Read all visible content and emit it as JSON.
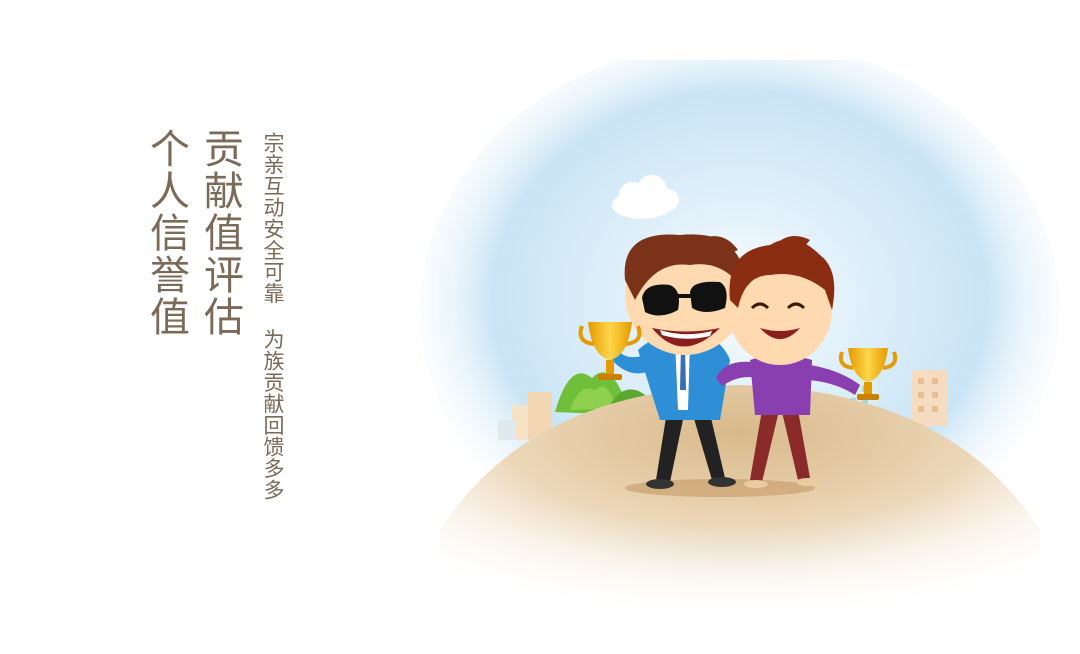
{
  "title": {
    "line1": "贡献值评估",
    "line2": "个人信誉值"
  },
  "slogan": "宗亲互动安全可靠 为族贡献回馈多多",
  "colors": {
    "text": "#7a6a57",
    "sky": "#cfe7f6",
    "ground": "#e8cca0",
    "trophy": "#f2b21b"
  },
  "illustration": {
    "subjects": [
      "man-with-sunglasses-icon",
      "smiling-man-icon",
      "trophy-icon",
      "cloud-icon",
      "buildings-icon",
      "tree-icon"
    ]
  }
}
